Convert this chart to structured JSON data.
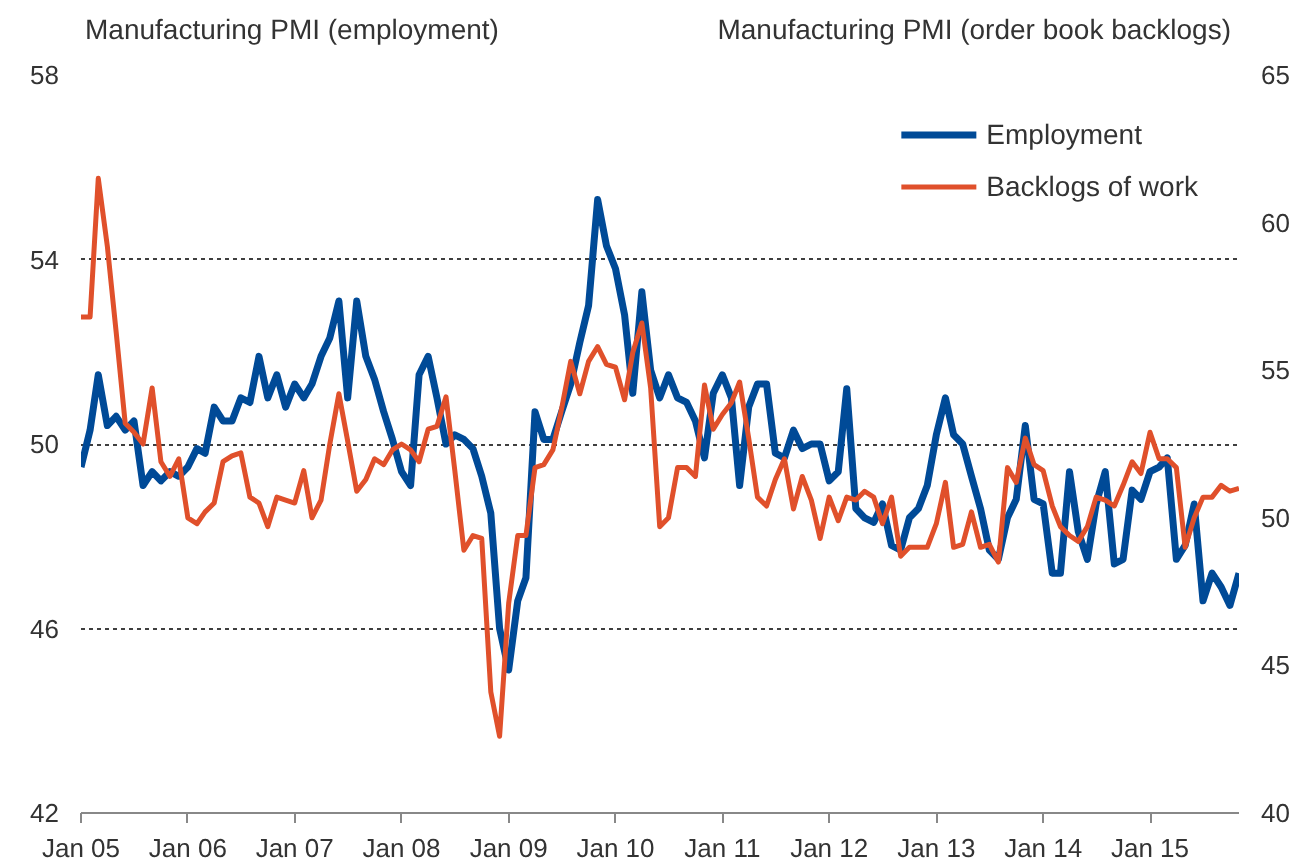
{
  "chart_data": {
    "type": "line",
    "ylabel": "Manufacturing PMI (employment)",
    "y2label": "Manufacturing PMI (order book backlogs)",
    "x": [
      "2005-01",
      "2005-02",
      "2005-03",
      "2005-04",
      "2005-05",
      "2005-06",
      "2005-07",
      "2005-08",
      "2005-09",
      "2005-10",
      "2005-11",
      "2005-12",
      "2006-01",
      "2006-02",
      "2006-03",
      "2006-04",
      "2006-05",
      "2006-06",
      "2006-07",
      "2006-08",
      "2006-09",
      "2006-10",
      "2006-11",
      "2006-12",
      "2007-01",
      "2007-02",
      "2007-03",
      "2007-04",
      "2007-05",
      "2007-06",
      "2007-07",
      "2007-08",
      "2007-09",
      "2007-10",
      "2007-11",
      "2007-12",
      "2008-01",
      "2008-02",
      "2008-03",
      "2008-04",
      "2008-05",
      "2008-06",
      "2008-07",
      "2008-08",
      "2008-09",
      "2008-10",
      "2008-11",
      "2008-12",
      "2009-01",
      "2009-02",
      "2009-03",
      "2009-04",
      "2009-05",
      "2009-06",
      "2009-07",
      "2009-08",
      "2009-09",
      "2009-10",
      "2009-11",
      "2009-12",
      "2010-01",
      "2010-02",
      "2010-03",
      "2010-04",
      "2010-05",
      "2010-06",
      "2010-07",
      "2010-08",
      "2010-09",
      "2010-10",
      "2010-11",
      "2010-12",
      "2011-01",
      "2011-02",
      "2011-03",
      "2011-04",
      "2011-05",
      "2011-06",
      "2011-07",
      "2011-08",
      "2011-09",
      "2011-10",
      "2011-11",
      "2011-12",
      "2012-01",
      "2012-02",
      "2012-03",
      "2012-04",
      "2012-05",
      "2012-06",
      "2012-07",
      "2012-08",
      "2012-09",
      "2012-10",
      "2012-11",
      "2012-12",
      "2013-01",
      "2013-02",
      "2013-03",
      "2013-04",
      "2013-05",
      "2013-06",
      "2013-07",
      "2013-08",
      "2013-09",
      "2013-10",
      "2013-11",
      "2013-12",
      "2014-01",
      "2014-02",
      "2014-03",
      "2014-04",
      "2014-05",
      "2014-06",
      "2014-07",
      "2014-08",
      "2014-09",
      "2014-10",
      "2014-11",
      "2014-12",
      "2015-01",
      "2015-02",
      "2015-03",
      "2015-04",
      "2015-05",
      "2015-06",
      "2015-07",
      "2015-08",
      "2015-09",
      "2015-10",
      "2015-11"
    ],
    "series": [
      {
        "name": "Employment",
        "color": "#004a97",
        "values": [
          49.5,
          50.3,
          51.5,
          50.4,
          50.6,
          50.3,
          50.5,
          49.1,
          49.4,
          49.2,
          49.4,
          49.3,
          49.5,
          49.9,
          49.8,
          50.8,
          50.5,
          50.5,
          51.0,
          50.9,
          51.9,
          51.0,
          51.5,
          50.8,
          51.3,
          51.0,
          51.3,
          51.9,
          52.3,
          53.1,
          51.0,
          53.1,
          51.9,
          51.4,
          50.7,
          50.1,
          49.4,
          49.1,
          51.5,
          51.9,
          51.0,
          50.0,
          50.2,
          50.1,
          49.9,
          49.3,
          48.5,
          46.0,
          45.1,
          46.6,
          47.1,
          50.7,
          50.1,
          50.1,
          50.7,
          51.3,
          52.2,
          53.0,
          55.3,
          54.3,
          53.8,
          52.8,
          51.1,
          53.3,
          51.6,
          51.0,
          51.5,
          51.0,
          50.9,
          50.5,
          49.7,
          51.1,
          51.5,
          51.0,
          49.1,
          50.8,
          51.3,
          51.3,
          49.8,
          49.7,
          50.3,
          49.9,
          50.0,
          50.0,
          49.2,
          49.4,
          51.2,
          48.6,
          48.4,
          48.3,
          48.7,
          47.8,
          47.7,
          48.4,
          48.6,
          49.1,
          50.2,
          51.0,
          50.2,
          50.0,
          49.3,
          48.6,
          47.7,
          47.5,
          48.4,
          48.8,
          50.4,
          48.8,
          48.7,
          47.2,
          47.2,
          49.4,
          48.1,
          47.5,
          48.7,
          49.4,
          47.4,
          47.5,
          49.0,
          48.8,
          49.4,
          49.5,
          49.7,
          47.5,
          47.8,
          48.7,
          46.6,
          47.2,
          46.9,
          46.5,
          47.2
        ]
      },
      {
        "name": "Backlogs of work",
        "color": "#e0502b",
        "axis": "y2",
        "values": [
          56.8,
          56.8,
          61.5,
          59.2,
          56.3,
          53.2,
          52.9,
          52.5,
          54.4,
          51.9,
          51.4,
          52.0,
          50.0,
          49.8,
          50.2,
          50.5,
          51.9,
          52.1,
          52.2,
          50.7,
          50.5,
          49.7,
          50.7,
          50.6,
          50.5,
          51.6,
          50.0,
          50.6,
          52.5,
          54.2,
          52.6,
          50.9,
          51.3,
          52.0,
          51.8,
          52.3,
          52.5,
          52.3,
          51.9,
          53.0,
          53.1,
          54.1,
          51.6,
          48.9,
          49.4,
          49.3,
          44.1,
          42.6,
          47.1,
          49.4,
          49.4,
          51.7,
          51.8,
          52.3,
          53.7,
          55.3,
          54.2,
          55.3,
          55.8,
          55.2,
          55.1,
          54.0,
          55.6,
          56.6,
          54.4,
          49.7,
          50.0,
          51.7,
          51.7,
          51.4,
          54.5,
          53.0,
          53.5,
          53.9,
          54.6,
          52.7,
          50.7,
          50.4,
          51.3,
          52.0,
          50.3,
          51.4,
          50.6,
          49.3,
          50.7,
          49.9,
          50.7,
          50.6,
          50.9,
          50.7,
          49.8,
          50.7,
          48.7,
          49.0,
          49.0,
          49.0,
          49.8,
          51.2,
          49.0,
          49.1,
          50.2,
          49.0,
          49.1,
          48.5,
          51.7,
          51.2,
          52.7,
          51.8,
          51.6,
          50.4,
          49.7,
          49.4,
          49.2,
          49.7,
          50.7,
          50.6,
          50.4,
          51.1,
          51.9,
          51.5,
          52.9,
          52.0,
          52.0,
          51.7,
          49.0,
          50.0,
          50.7,
          50.7,
          51.1,
          50.9,
          51.0
        ]
      }
    ],
    "xlim": [
      "2005-01",
      "2015-11"
    ],
    "xticks": [
      {
        "value": "2005-01",
        "label": "Jan 05"
      },
      {
        "value": "2006-01",
        "label": "Jan 06"
      },
      {
        "value": "2007-01",
        "label": "Jan 07"
      },
      {
        "value": "2008-01",
        "label": "Jan 08"
      },
      {
        "value": "2009-01",
        "label": "Jan 09"
      },
      {
        "value": "2010-01",
        "label": "Jan 10"
      },
      {
        "value": "2011-01",
        "label": "Jan 11"
      },
      {
        "value": "2012-01",
        "label": "Jan 12"
      },
      {
        "value": "2013-01",
        "label": "Jan 13"
      },
      {
        "value": "2014-01",
        "label": "Jan 14"
      },
      {
        "value": "2015-01",
        "label": "Jan 15"
      }
    ],
    "ylim": [
      42,
      58
    ],
    "yticks": [
      42,
      46,
      50,
      54,
      58
    ],
    "y2lim": [
      40,
      65
    ],
    "y2ticks": [
      40,
      45,
      50,
      55,
      60,
      65
    ],
    "grid": "y",
    "legend": "top right",
    "marker": "none",
    "line_style": "solid"
  }
}
